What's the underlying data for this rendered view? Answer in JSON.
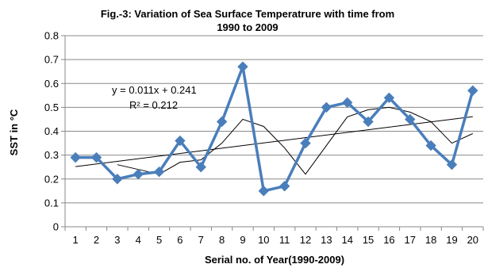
{
  "chart_data": {
    "type": "line",
    "title_line1": "Fig.-3: Variation of Sea Surface Temperatrure   with  time from",
    "title_line2": "1990 to 2009",
    "xlabel": "Serial no. of Year(1990-2009)",
    "ylabel": "SST in °C",
    "x": [
      1,
      2,
      3,
      4,
      5,
      6,
      7,
      8,
      9,
      10,
      11,
      12,
      13,
      14,
      15,
      16,
      17,
      18,
      19,
      20
    ],
    "ylim": [
      0,
      0.8
    ],
    "yticks": [
      "0",
      "0.1",
      "0.2",
      "0.3",
      "0.4",
      "0.5",
      "0.6",
      "0.7",
      "0.8"
    ],
    "grid": true,
    "series": [
      {
        "kind": "data",
        "color": "#4a7ebb",
        "marker": "diamond",
        "values": [
          0.29,
          0.29,
          0.2,
          0.22,
          0.23,
          0.36,
          0.25,
          0.44,
          0.67,
          0.15,
          0.17,
          0.35,
          0.5,
          0.52,
          0.44,
          0.54,
          0.45,
          0.34,
          0.26,
          0.57
        ]
      },
      {
        "kind": "moving-average",
        "color": "#000000",
        "values": [
          null,
          null,
          0.26,
          0.24,
          0.22,
          0.27,
          0.28,
          0.35,
          0.45,
          0.42,
          0.33,
          0.22,
          0.34,
          0.46,
          0.49,
          0.5,
          0.48,
          0.44,
          0.35,
          0.39
        ]
      },
      {
        "kind": "linear-trend",
        "color": "#000000",
        "slope": 0.011,
        "intercept": 0.241
      }
    ],
    "annotations": {
      "equation": "y = 0.011x + 0.241",
      "r_squared": "R² = 0.212"
    }
  }
}
